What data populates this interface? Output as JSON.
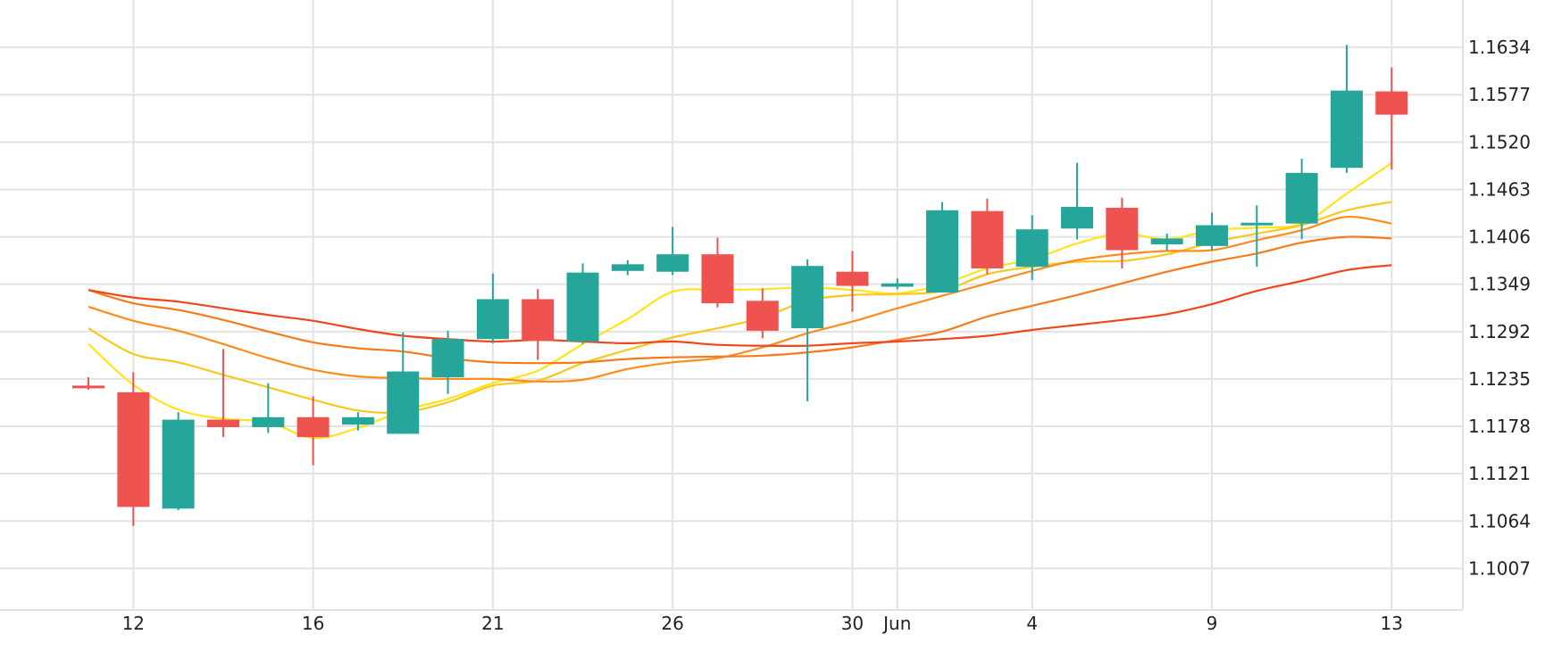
{
  "chart_data": {
    "type": "candlestick",
    "ylim": [
      1.0957,
      1.1691
    ],
    "yticks": [
      "1.1007",
      "1.1064",
      "1.1121",
      "1.1178",
      "1.1235",
      "1.1292",
      "1.1349",
      "1.1406",
      "1.1463",
      "1.1520",
      "1.1577",
      "1.1634"
    ],
    "xticks": [
      {
        "x": 1,
        "label": "12"
      },
      {
        "x": 5,
        "label": "16"
      },
      {
        "x": 9,
        "label": "21"
      },
      {
        "x": 13,
        "label": "26"
      },
      {
        "x": 17,
        "label": "30"
      },
      {
        "x": 18,
        "label": "Jun"
      },
      {
        "x": 21,
        "label": "4"
      },
      {
        "x": 25,
        "label": "9"
      },
      {
        "x": 29,
        "label": "13"
      }
    ],
    "candles": [
      {
        "o": 1.1227,
        "h": 1.1237,
        "l": 1.1222,
        "c": 1.1224
      },
      {
        "o": 1.1219,
        "h": 1.1243,
        "l": 1.1058,
        "c": 1.1081
      },
      {
        "o": 1.1079,
        "h": 1.1195,
        "l": 1.1077,
        "c": 1.1186
      },
      {
        "o": 1.1186,
        "h": 1.1271,
        "l": 1.1165,
        "c": 1.1177
      },
      {
        "o": 1.1177,
        "h": 1.123,
        "l": 1.117,
        "c": 1.1189
      },
      {
        "o": 1.1189,
        "h": 1.1214,
        "l": 1.1131,
        "c": 1.1165
      },
      {
        "o": 1.118,
        "h": 1.1195,
        "l": 1.1173,
        "c": 1.1189
      },
      {
        "o": 1.1169,
        "h": 1.1291,
        "l": 1.1169,
        "c": 1.1244
      },
      {
        "o": 1.1237,
        "h": 1.1293,
        "l": 1.1217,
        "c": 1.1283
      },
      {
        "o": 1.1283,
        "h": 1.1362,
        "l": 1.1278,
        "c": 1.1331
      },
      {
        "o": 1.1331,
        "h": 1.1343,
        "l": 1.1258,
        "c": 1.1281
      },
      {
        "o": 1.128,
        "h": 1.1374,
        "l": 1.1277,
        "c": 1.1363
      },
      {
        "o": 1.1365,
        "h": 1.1378,
        "l": 1.136,
        "c": 1.1373
      },
      {
        "o": 1.1364,
        "h": 1.1418,
        "l": 1.136,
        "c": 1.1385
      },
      {
        "o": 1.1385,
        "h": 1.1405,
        "l": 1.1321,
        "c": 1.1326
      },
      {
        "o": 1.1329,
        "h": 1.1344,
        "l": 1.1284,
        "c": 1.1293
      },
      {
        "o": 1.1296,
        "h": 1.1379,
        "l": 1.1208,
        "c": 1.1371
      },
      {
        "o": 1.1364,
        "h": 1.1389,
        "l": 1.1316,
        "c": 1.1347
      },
      {
        "o": 1.1346,
        "h": 1.1356,
        "l": 1.1343,
        "c": 1.135
      },
      {
        "o": 1.1339,
        "h": 1.1448,
        "l": 1.1339,
        "c": 1.1438
      },
      {
        "o": 1.1437,
        "h": 1.1452,
        "l": 1.1361,
        "c": 1.1368
      },
      {
        "o": 1.137,
        "h": 1.1432,
        "l": 1.1354,
        "c": 1.1415
      },
      {
        "o": 1.1416,
        "h": 1.1495,
        "l": 1.1403,
        "c": 1.1442
      },
      {
        "o": 1.1441,
        "h": 1.1453,
        "l": 1.1368,
        "c": 1.139
      },
      {
        "o": 1.1397,
        "h": 1.141,
        "l": 1.139,
        "c": 1.1404
      },
      {
        "o": 1.1395,
        "h": 1.1435,
        "l": 1.139,
        "c": 1.142
      },
      {
        "o": 1.142,
        "h": 1.1444,
        "l": 1.137,
        "c": 1.1423
      },
      {
        "o": 1.1422,
        "h": 1.15,
        "l": 1.1403,
        "c": 1.1483
      },
      {
        "o": 1.1489,
        "h": 1.1637,
        "l": 1.1483,
        "c": 1.1582
      },
      {
        "o": 1.1581,
        "h": 1.161,
        "l": 1.1487,
        "c": 1.1553
      }
    ],
    "series": [
      {
        "color": "#ffe41a",
        "values": [
          1.1277,
          1.1228,
          1.1198,
          1.1187,
          1.1183,
          1.1164,
          1.1176,
          1.1197,
          1.1211,
          1.123,
          1.1245,
          1.1277,
          1.1307,
          1.134,
          1.1342,
          1.1343,
          1.1345,
          1.1342,
          1.1338,
          1.1349,
          1.1368,
          1.1379,
          1.1398,
          1.141,
          1.1403,
          1.1414,
          1.1417,
          1.1422,
          1.1458,
          1.1495
        ]
      },
      {
        "color": "#f8c81c",
        "values": [
          1.1296,
          1.1265,
          1.1255,
          1.124,
          1.1225,
          1.121,
          1.1197,
          1.1195,
          1.1207,
          1.1227,
          1.1233,
          1.1254,
          1.127,
          1.1285,
          1.1296,
          1.1309,
          1.1329,
          1.1336,
          1.1337,
          1.1341,
          1.1361,
          1.137,
          1.1376,
          1.1377,
          1.1385,
          1.1399,
          1.141,
          1.142,
          1.1438,
          1.1448
        ]
      },
      {
        "color": "#ff8c1a",
        "values": [
          1.1322,
          1.1305,
          1.1293,
          1.1277,
          1.126,
          1.1246,
          1.1238,
          1.1236,
          1.1235,
          1.1235,
          1.1232,
          1.1234,
          1.1247,
          1.1255,
          1.126,
          1.1273,
          1.129,
          1.1304,
          1.132,
          1.1335,
          1.135,
          1.1365,
          1.1378,
          1.1385,
          1.1389,
          1.139,
          1.1402,
          1.1414,
          1.143,
          1.1422
        ]
      },
      {
        "color": "#f77a1a",
        "values": [
          1.1342,
          1.1326,
          1.1318,
          1.1306,
          1.1292,
          1.1279,
          1.1272,
          1.1268,
          1.126,
          1.1255,
          1.1254,
          1.1255,
          1.1259,
          1.1261,
          1.1262,
          1.1263,
          1.1267,
          1.1273,
          1.1282,
          1.1292,
          1.131,
          1.1323,
          1.1336,
          1.135,
          1.1364,
          1.1376,
          1.1386,
          1.1399,
          1.1406,
          1.1404
        ]
      },
      {
        "color": "#f0461a",
        "values": [
          1.1342,
          1.1333,
          1.1328,
          1.132,
          1.1312,
          1.1305,
          1.1295,
          1.1287,
          1.1283,
          1.128,
          1.1282,
          1.128,
          1.1278,
          1.128,
          1.1276,
          1.1275,
          1.1275,
          1.1278,
          1.128,
          1.1283,
          1.1287,
          1.1294,
          1.13,
          1.1306,
          1.1313,
          1.1325,
          1.1341,
          1.1353,
          1.1366,
          1.1372
        ]
      }
    ],
    "colors": {
      "up": "#26a69a",
      "down": "#ef5350",
      "grid": "#e3e3e3"
    }
  }
}
